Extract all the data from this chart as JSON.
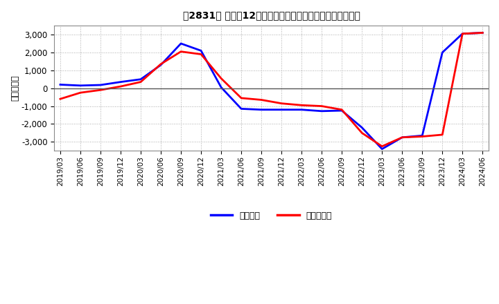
{
  "title": "［2831］ 利益だ12か月移動合計の対前年同期増減額の推移",
  "ylabel": "（百万円）",
  "background_color": "#ffffff",
  "plot_background_color": "#ffffff",
  "grid_color": "#aaaaaa",
  "ylim": [
    -3500,
    3500
  ],
  "yticks": [
    -3000,
    -2000,
    -1000,
    0,
    1000,
    2000,
    3000
  ],
  "legend_labels": [
    "経常利益",
    "当期純利益"
  ],
  "legend_colors": [
    "#0000ff",
    "#ff0000"
  ],
  "dates": [
    "2019/03",
    "2019/06",
    "2019/09",
    "2019/12",
    "2020/03",
    "2020/06",
    "2020/09",
    "2020/12",
    "2021/03",
    "2021/06",
    "2021/09",
    "2021/12",
    "2022/03",
    "2022/06",
    "2022/09",
    "2022/12",
    "2023/03",
    "2023/06",
    "2023/09",
    "2023/12",
    "2024/03",
    "2024/06"
  ],
  "keijo_rieki": [
    200,
    150,
    180,
    350,
    500,
    1300,
    2500,
    2100,
    50,
    -1150,
    -1200,
    -1200,
    -1200,
    -1280,
    -1250,
    -2200,
    -3400,
    -2750,
    -2650,
    2000,
    3050,
    3100
  ],
  "touki_jurieki": [
    -600,
    -250,
    -100,
    100,
    350,
    1350,
    2050,
    1900,
    550,
    -550,
    -650,
    -850,
    -950,
    -1000,
    -1200,
    -2500,
    -3250,
    -2750,
    -2700,
    -2600,
    3050,
    3100
  ]
}
